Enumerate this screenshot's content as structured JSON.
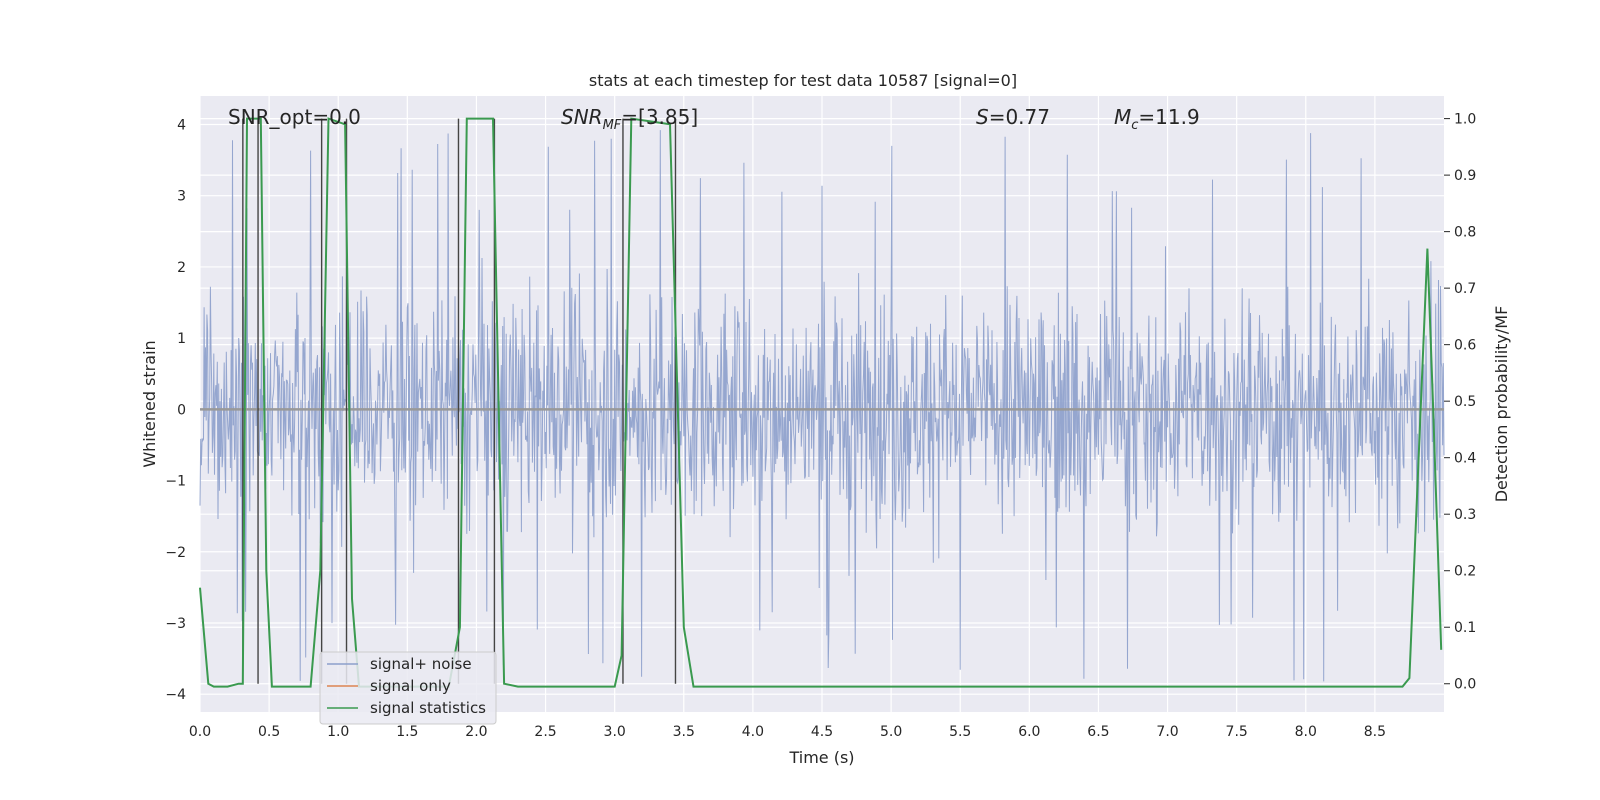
{
  "chart_data": {
    "type": "line",
    "title": "stats at each timestep for test data 10587 [signal=0]",
    "xlabel": "Time (s)",
    "ylabel_left": "Whitened strain",
    "ylabel_right": "Detection probability/MF",
    "xlim": [
      0,
      9.0
    ],
    "ylim_left": [
      -4.25,
      4.4
    ],
    "ylim_right": [
      -0.05,
      1.04
    ],
    "x_ticks": [
      0.0,
      0.5,
      1.0,
      1.5,
      2.0,
      2.5,
      3.0,
      3.5,
      4.0,
      4.5,
      5.0,
      5.5,
      6.0,
      6.5,
      7.0,
      7.5,
      8.0,
      8.5
    ],
    "x_tick_labels": [
      "0.0",
      "0.5",
      "1.0",
      "1.5",
      "2.0",
      "2.5",
      "3.0",
      "3.5",
      "4.0",
      "4.5",
      "5.0",
      "5.5",
      "6.0",
      "6.5",
      "7.0",
      "7.5",
      "8.0",
      "8.5"
    ],
    "y_left_ticks": [
      -4,
      -3,
      -2,
      -1,
      0,
      1,
      2,
      3,
      4
    ],
    "y_left_tick_labels": [
      "−4",
      "−3",
      "−2",
      "−1",
      "0",
      "1",
      "2",
      "3",
      "4"
    ],
    "y_right_ticks": [
      0.0,
      0.1,
      0.2,
      0.3,
      0.4,
      0.5,
      0.6,
      0.7,
      0.8,
      0.9,
      1.0
    ],
    "y_right_tick_labels": [
      "0.0",
      "0.1",
      "0.2",
      "0.3",
      "0.4",
      "0.5",
      "0.6",
      "0.7",
      "0.8",
      "0.9",
      "1.0"
    ],
    "annotations": [
      {
        "id": "snr-opt",
        "text": "SNR_opt=0.0"
      },
      {
        "id": "snr-mf",
        "base": "SNR",
        "sub": "MF",
        "rest": "=[3.85]"
      },
      {
        "id": "s-value",
        "base": "S",
        "rest": "=0.77"
      },
      {
        "id": "mc-value",
        "base": "M",
        "sub": "c",
        "rest": "=11.9"
      }
    ],
    "legend": {
      "placement": "lower-left",
      "entries": [
        "signal+ noise",
        "signal only",
        "signal statistics"
      ]
    },
    "colors": {
      "noise": "#8c9fcb",
      "signal": "#dd8452",
      "stats": "#3a9a4f",
      "trigger": "#444444",
      "background": "#eaeaf2",
      "grid": "#ffffff"
    },
    "series": [
      {
        "name": "signal+ noise",
        "kind": "noise",
        "amplitude_typical": 1.6,
        "amplitude_peak": 4.0
      },
      {
        "name": "signal only",
        "values_constant": 0.0
      },
      {
        "name": "signal statistics",
        "axis": "right",
        "x": [
          0.0,
          0.06,
          0.1,
          0.2,
          0.28,
          0.31,
          0.34,
          0.38,
          0.44,
          0.48,
          0.52,
          0.6,
          0.8,
          0.87,
          0.93,
          1.05,
          1.1,
          1.15,
          1.8,
          1.88,
          1.93,
          2.12,
          2.2,
          2.3,
          3.0,
          3.05,
          3.12,
          3.4,
          3.5,
          3.57,
          4.0,
          5.0,
          6.0,
          7.0,
          8.0,
          8.7,
          8.75,
          8.88,
          8.92,
          8.98
        ],
        "y": [
          0.17,
          0.0,
          -0.005,
          -0.005,
          0.0,
          0.0,
          1.0,
          1.0,
          1.0,
          0.2,
          -0.005,
          -0.005,
          -0.005,
          0.2,
          1.0,
          0.99,
          0.15,
          -0.005,
          -0.005,
          0.1,
          1.0,
          1.0,
          0.0,
          -0.005,
          -0.005,
          0.05,
          1.0,
          0.99,
          0.1,
          -0.005,
          -0.005,
          -0.005,
          -0.005,
          -0.005,
          -0.005,
          -0.005,
          0.01,
          0.77,
          0.5,
          0.06
        ]
      }
    ],
    "trigger_lines_x": [
      0.31,
      0.42,
      0.88,
      1.06,
      1.87,
      2.13,
      3.06,
      3.44
    ]
  }
}
